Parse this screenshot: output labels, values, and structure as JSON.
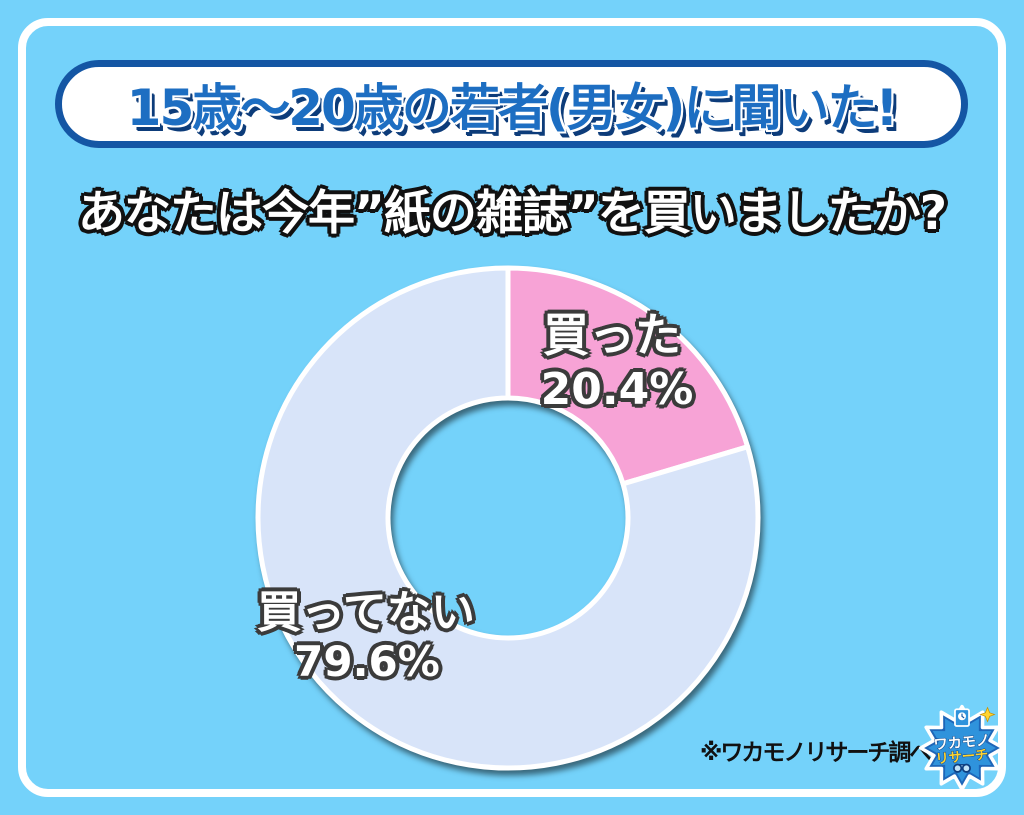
{
  "poster": {
    "banner_title": "15歳～20歳の若者(男女)に聞いた!",
    "question": "あなたは今年”紙の雑誌”を買いましたか?",
    "source_note": "※ワカモノリサーチ調べ",
    "logo": {
      "line1": "ワカモノ",
      "line2": "リサーチ"
    }
  },
  "colors": {
    "background": "#74D2FA",
    "frame": "#FFFFFF",
    "banner_fill": "#FFFFFF",
    "banner_border": "#1456A4",
    "banner_text": "#1D6EC2",
    "banner_text_shadow": "#0D3C7A",
    "subtitle_text": "#FFFFFF",
    "subtitle_outline": "#111111",
    "slice_divider": "#FFFFFF",
    "label_outline": "#3b3b3b"
  },
  "chart_data": {
    "type": "pie",
    "subtype": "donut",
    "title": "あなたは今年”紙の雑誌”を買いましたか?",
    "start_angle_deg": 0,
    "direction": "clockwise",
    "inner_radius_ratio": 0.48,
    "legend_position": "on-slices",
    "segments": [
      {
        "label": "買った",
        "value_pct": 20.4,
        "pct_label": "20.4%",
        "color": "#F7A3D6"
      },
      {
        "label": "買ってない",
        "value_pct": 79.6,
        "pct_label": "79.6%",
        "color": "#D8E4F9"
      }
    ]
  }
}
